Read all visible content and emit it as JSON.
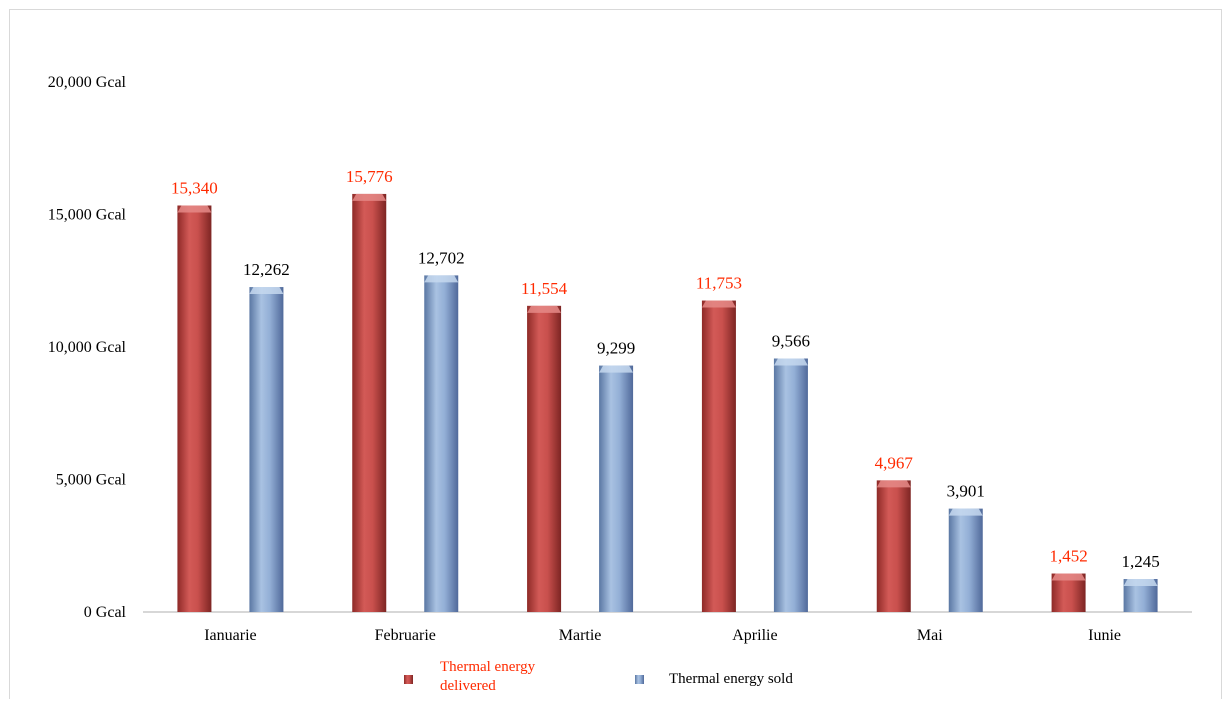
{
  "chart_data": {
    "type": "bar",
    "categories": [
      "Ianuarie",
      "Februarie",
      "Martie",
      "Aprilie",
      "Mai",
      "Iunie"
    ],
    "series": [
      {
        "name": "Thermal energy delivered",
        "values": [
          15340,
          15776,
          11554,
          11753,
          4967,
          1452
        ],
        "labels": [
          "15,340",
          "15,776",
          "11,554",
          "11,753",
          "4,967",
          "1,452"
        ],
        "color": "#c0504d",
        "label_color": "#ff2a00"
      },
      {
        "name": "Thermal energy sold",
        "values": [
          12262,
          12702,
          9299,
          9566,
          3901,
          1245
        ],
        "labels": [
          "12,262",
          "12,702",
          "9,299",
          "9,566",
          "3,901",
          "1,245"
        ],
        "color": "#95b3d7",
        "label_color": "#000000"
      }
    ],
    "y_ticks": [
      "0 Gcal",
      "5,000 Gcal",
      "10,000 Gcal",
      "15,000 Gcal",
      "20,000 Gcal"
    ],
    "ylim": [
      0,
      20000
    ],
    "legend_position": "bottom",
    "grid": false
  },
  "legend": {
    "delivered_line1": "Thermal energy",
    "delivered_line2": "delivered",
    "sold": "Thermal energy sold"
  }
}
